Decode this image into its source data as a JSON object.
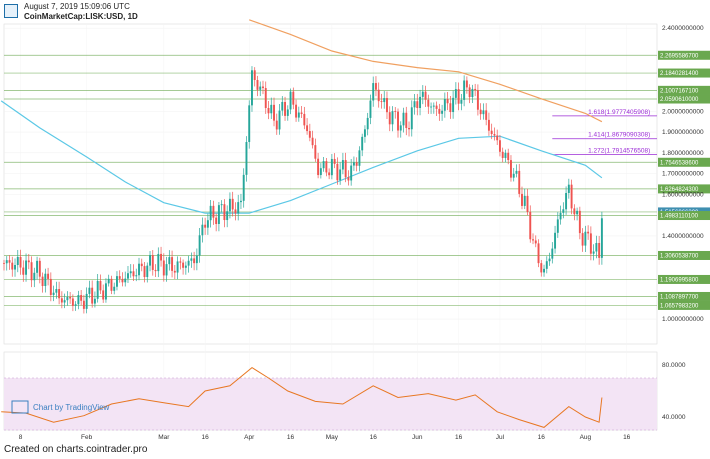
{
  "header": {
    "date": "August 7, 2019 15:09:06 UTC",
    "symbol": "CoinMarketCap:LISK:USD, 1D"
  },
  "footer": {
    "source": "Created on charts.cointrader.pro"
  },
  "watermark": {
    "label": "Chart by TradingView"
  },
  "colors": {
    "up": "#26a69a",
    "down": "#ef5350",
    "ma_short": "#5bc8e6",
    "ma_long": "#f0a060",
    "level": "#6aa84f",
    "fib": "#9b2bd6",
    "rsi": "#e87722",
    "rsi_band": "#f3e4f5"
  },
  "chart_data": [
    {
      "type": "candlestick",
      "title": "",
      "y_scale": "linear",
      "ylim": [
        0.88,
        2.42
      ],
      "y_ticks": [
        "2.4000000000",
        "2.0000000000",
        "1.9000000000",
        "1.8000000000",
        "1.7000000000",
        "1.6000000000",
        "1.4000000000",
        "1.0000000000"
      ],
      "x_ticks": [
        {
          "label": "8",
          "date": "2019-01-08"
        },
        {
          "label": "Feb",
          "date": "2019-02-01"
        },
        {
          "label": "Mar",
          "date": "2019-03-01"
        },
        {
          "label": "16",
          "date": "2019-03-16"
        },
        {
          "label": "Apr",
          "date": "2019-04-01"
        },
        {
          "label": "16",
          "date": "2019-04-16"
        },
        {
          "label": "May",
          "date": "2019-05-01"
        },
        {
          "label": "16",
          "date": "2019-05-16"
        },
        {
          "label": "Jun",
          "date": "2019-06-01"
        },
        {
          "label": "16",
          "date": "2019-06-16"
        },
        {
          "label": "Jul",
          "date": "2019-07-01"
        },
        {
          "label": "16",
          "date": "2019-07-16"
        },
        {
          "label": "Aug",
          "date": "2019-08-01"
        },
        {
          "label": "16",
          "date": "2019-08-16"
        }
      ],
      "close_path": [
        [
          "2019-01-01",
          1.27
        ],
        [
          "2019-01-08",
          1.26
        ],
        [
          "2019-01-15",
          1.22
        ],
        [
          "2019-01-22",
          1.1
        ],
        [
          "2019-01-29",
          1.08
        ],
        [
          "2019-02-05",
          1.13
        ],
        [
          "2019-02-12",
          1.18
        ],
        [
          "2019-02-19",
          1.23
        ],
        [
          "2019-02-26",
          1.27
        ],
        [
          "2019-03-05",
          1.25
        ],
        [
          "2019-03-12",
          1.28
        ],
        [
          "2019-03-16",
          1.48
        ],
        [
          "2019-03-22",
          1.52
        ],
        [
          "2019-03-29",
          1.55
        ],
        [
          "2019-04-02",
          2.18
        ],
        [
          "2019-04-06",
          2.08
        ],
        [
          "2019-04-10",
          1.95
        ],
        [
          "2019-04-16",
          2.05
        ],
        [
          "2019-04-22",
          1.92
        ],
        [
          "2019-04-26",
          1.72
        ],
        [
          "2019-05-01",
          1.73
        ],
        [
          "2019-05-08",
          1.7
        ],
        [
          "2019-05-12",
          1.85
        ],
        [
          "2019-05-16",
          2.12
        ],
        [
          "2019-05-22",
          1.98
        ],
        [
          "2019-05-28",
          1.93
        ],
        [
          "2019-06-02",
          2.08
        ],
        [
          "2019-06-08",
          2.0
        ],
        [
          "2019-06-14",
          2.05
        ],
        [
          "2019-06-20",
          2.12
        ],
        [
          "2019-06-26",
          1.95
        ],
        [
          "2019-07-01",
          1.82
        ],
        [
          "2019-07-06",
          1.7
        ],
        [
          "2019-07-10",
          1.55
        ],
        [
          "2019-07-14",
          1.32
        ],
        [
          "2019-07-17",
          1.22
        ],
        [
          "2019-07-20",
          1.35
        ],
        [
          "2019-07-23",
          1.52
        ],
        [
          "2019-07-26",
          1.62
        ],
        [
          "2019-07-30",
          1.42
        ],
        [
          "2019-08-03",
          1.36
        ],
        [
          "2019-08-06",
          1.3
        ],
        [
          "2019-08-07",
          1.52
        ]
      ],
      "moving_averages": [
        {
          "color": "#5bc8e6",
          "points": [
            [
              "2019-01-01",
              2.05
            ],
            [
              "2019-01-15",
              1.92
            ],
            [
              "2019-02-01",
              1.78
            ],
            [
              "2019-02-15",
              1.66
            ],
            [
              "2019-03-01",
              1.56
            ],
            [
              "2019-03-16",
              1.51
            ],
            [
              "2019-04-01",
              1.51
            ],
            [
              "2019-04-16",
              1.57
            ],
            [
              "2019-05-01",
              1.65
            ],
            [
              "2019-05-16",
              1.73
            ],
            [
              "2019-06-01",
              1.81
            ],
            [
              "2019-06-16",
              1.87
            ],
            [
              "2019-07-01",
              1.88
            ],
            [
              "2019-07-16",
              1.81
            ],
            [
              "2019-08-01",
              1.74
            ],
            [
              "2019-08-07",
              1.68
            ]
          ]
        },
        {
          "color": "#f0a060",
          "points": [
            [
              "2019-04-01",
              2.44
            ],
            [
              "2019-04-16",
              2.37
            ],
            [
              "2019-05-01",
              2.29
            ],
            [
              "2019-05-16",
              2.24
            ],
            [
              "2019-06-01",
              2.21
            ],
            [
              "2019-06-16",
              2.19
            ],
            [
              "2019-07-01",
              2.13
            ],
            [
              "2019-07-16",
              2.06
            ],
            [
              "2019-08-01",
              1.99
            ],
            [
              "2019-08-07",
              1.95
            ]
          ]
        }
      ],
      "levels": [
        {
          "label": "2.2695586700",
          "value": 2.2695
        },
        {
          "label": "2.1840281400",
          "value": 2.184
        },
        {
          "label": "2.1007167100",
          "value": 2.1007
        },
        {
          "label": "2.0590610000",
          "value": 2.059
        },
        {
          "label": "1.7546538600",
          "value": 1.7546
        },
        {
          "label": "1.6264824300",
          "value": 1.6264
        },
        {
          "label": "1.5156066300",
          "value": 1.5156
        },
        {
          "label": "1.4983110100",
          "value": 1.4983
        },
        {
          "label": "1.3060538700",
          "value": 1.306
        },
        {
          "label": "1.1906995800",
          "value": 1.1906
        },
        {
          "label": "1.1087897700",
          "value": 1.1087
        },
        {
          "label": "1.0657983200",
          "value": 1.0657
        }
      ],
      "fibonacci": [
        {
          "label": "1.618(1.9777405908)",
          "value": 1.9777
        },
        {
          "label": "1.414(1.8679090308)",
          "value": 1.8679
        },
        {
          "label": "1.272(1.7914576508)",
          "value": 1.7914
        }
      ]
    },
    {
      "type": "line",
      "title": "",
      "ylim": [
        30,
        90
      ],
      "y_ticks": [
        "80.0000",
        "40.0000"
      ],
      "band": [
        30,
        70
      ],
      "points": [
        [
          "2019-01-01",
          44
        ],
        [
          "2019-01-10",
          43
        ],
        [
          "2019-01-20",
          36
        ],
        [
          "2019-01-31",
          41
        ],
        [
          "2019-02-10",
          50
        ],
        [
          "2019-02-20",
          54
        ],
        [
          "2019-03-01",
          51
        ],
        [
          "2019-03-10",
          48
        ],
        [
          "2019-03-16",
          60
        ],
        [
          "2019-03-25",
          64
        ],
        [
          "2019-04-02",
          78
        ],
        [
          "2019-04-08",
          70
        ],
        [
          "2019-04-15",
          60
        ],
        [
          "2019-04-25",
          52
        ],
        [
          "2019-05-05",
          50
        ],
        [
          "2019-05-16",
          64
        ],
        [
          "2019-05-25",
          55
        ],
        [
          "2019-06-05",
          58
        ],
        [
          "2019-06-15",
          53
        ],
        [
          "2019-06-22",
          57
        ],
        [
          "2019-06-30",
          44
        ],
        [
          "2019-07-08",
          38
        ],
        [
          "2019-07-17",
          32
        ],
        [
          "2019-07-26",
          48
        ],
        [
          "2019-08-01",
          40
        ],
        [
          "2019-08-06",
          36
        ],
        [
          "2019-08-07",
          55
        ]
      ]
    }
  ]
}
